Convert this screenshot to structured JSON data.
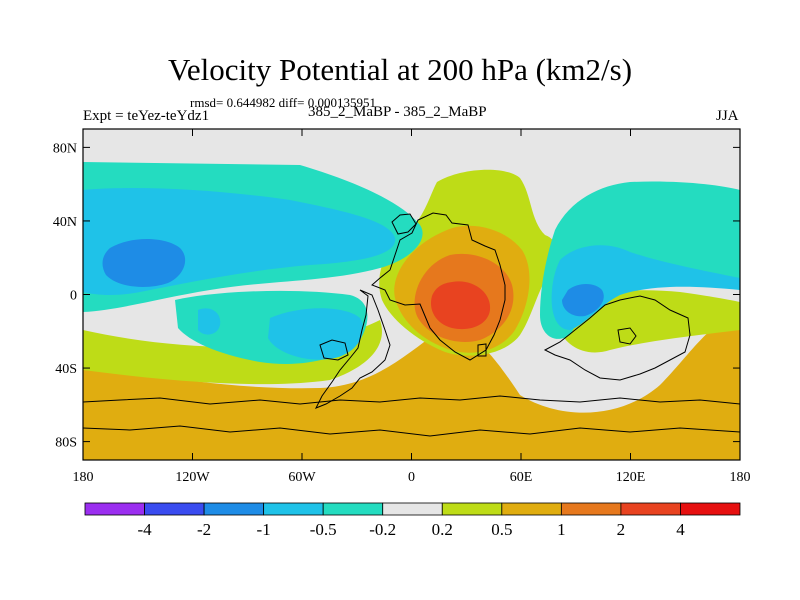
{
  "title": "Velocity Potential at 200 hPa (km2/s)",
  "stats": "rmsd= 0.644982 diff= 0.000135951",
  "experiment_label": "Expt = teYez-teYdz1",
  "comparison_label": "385_2_MaBP - 385_2_MaBP",
  "season": "JJA",
  "colors": {
    "cmin": "#9b2ef0",
    "c1": "#3a4cf0",
    "c2": "#1e8ce6",
    "c3": "#1fc2e8",
    "c4": "#24dcc0",
    "c5": "#e6e6e6",
    "c6": "#bedc17",
    "c7": "#e0ad10",
    "c8": "#e6781d",
    "c9": "#e84320",
    "c10": "#e61010"
  },
  "chart_data": {
    "type": "contour-map",
    "title": "Velocity Potential at 200 hPa (km2/s)",
    "units": "km2/s",
    "x_axis": {
      "range": [
        -180,
        180
      ],
      "ticks": [
        -180,
        -120,
        -60,
        0,
        60,
        120,
        180
      ],
      "tick_labels": [
        "180",
        "120W",
        "60W",
        "0",
        "60E",
        "120E",
        "180"
      ]
    },
    "y_axis": {
      "range": [
        -90,
        90
      ],
      "ticks": [
        80,
        40,
        0,
        -40,
        -80
      ],
      "tick_labels": [
        "80N",
        "40N",
        "0",
        "40S",
        "80S"
      ]
    },
    "contour_levels": [
      -4,
      -2,
      -1,
      -0.5,
      -0.2,
      0.2,
      0.5,
      1,
      2,
      4
    ],
    "colorbar_labels": [
      "-4",
      "-2",
      "-1",
      "-0.5",
      "-0.2",
      "0.2",
      "0.5",
      "1",
      "2",
      "4"
    ],
    "features": [
      {
        "name": "positive maximum",
        "lon": 25,
        "lat": -5,
        "value_band": ">2"
      },
      {
        "name": "negative minimum N Pacific",
        "lon": -150,
        "lat": 18,
        "value_band": "-2 to -1"
      },
      {
        "name": "negative minimum W Pacific",
        "lon": 95,
        "lat": -5,
        "value_band": "-2 to -1"
      }
    ]
  }
}
